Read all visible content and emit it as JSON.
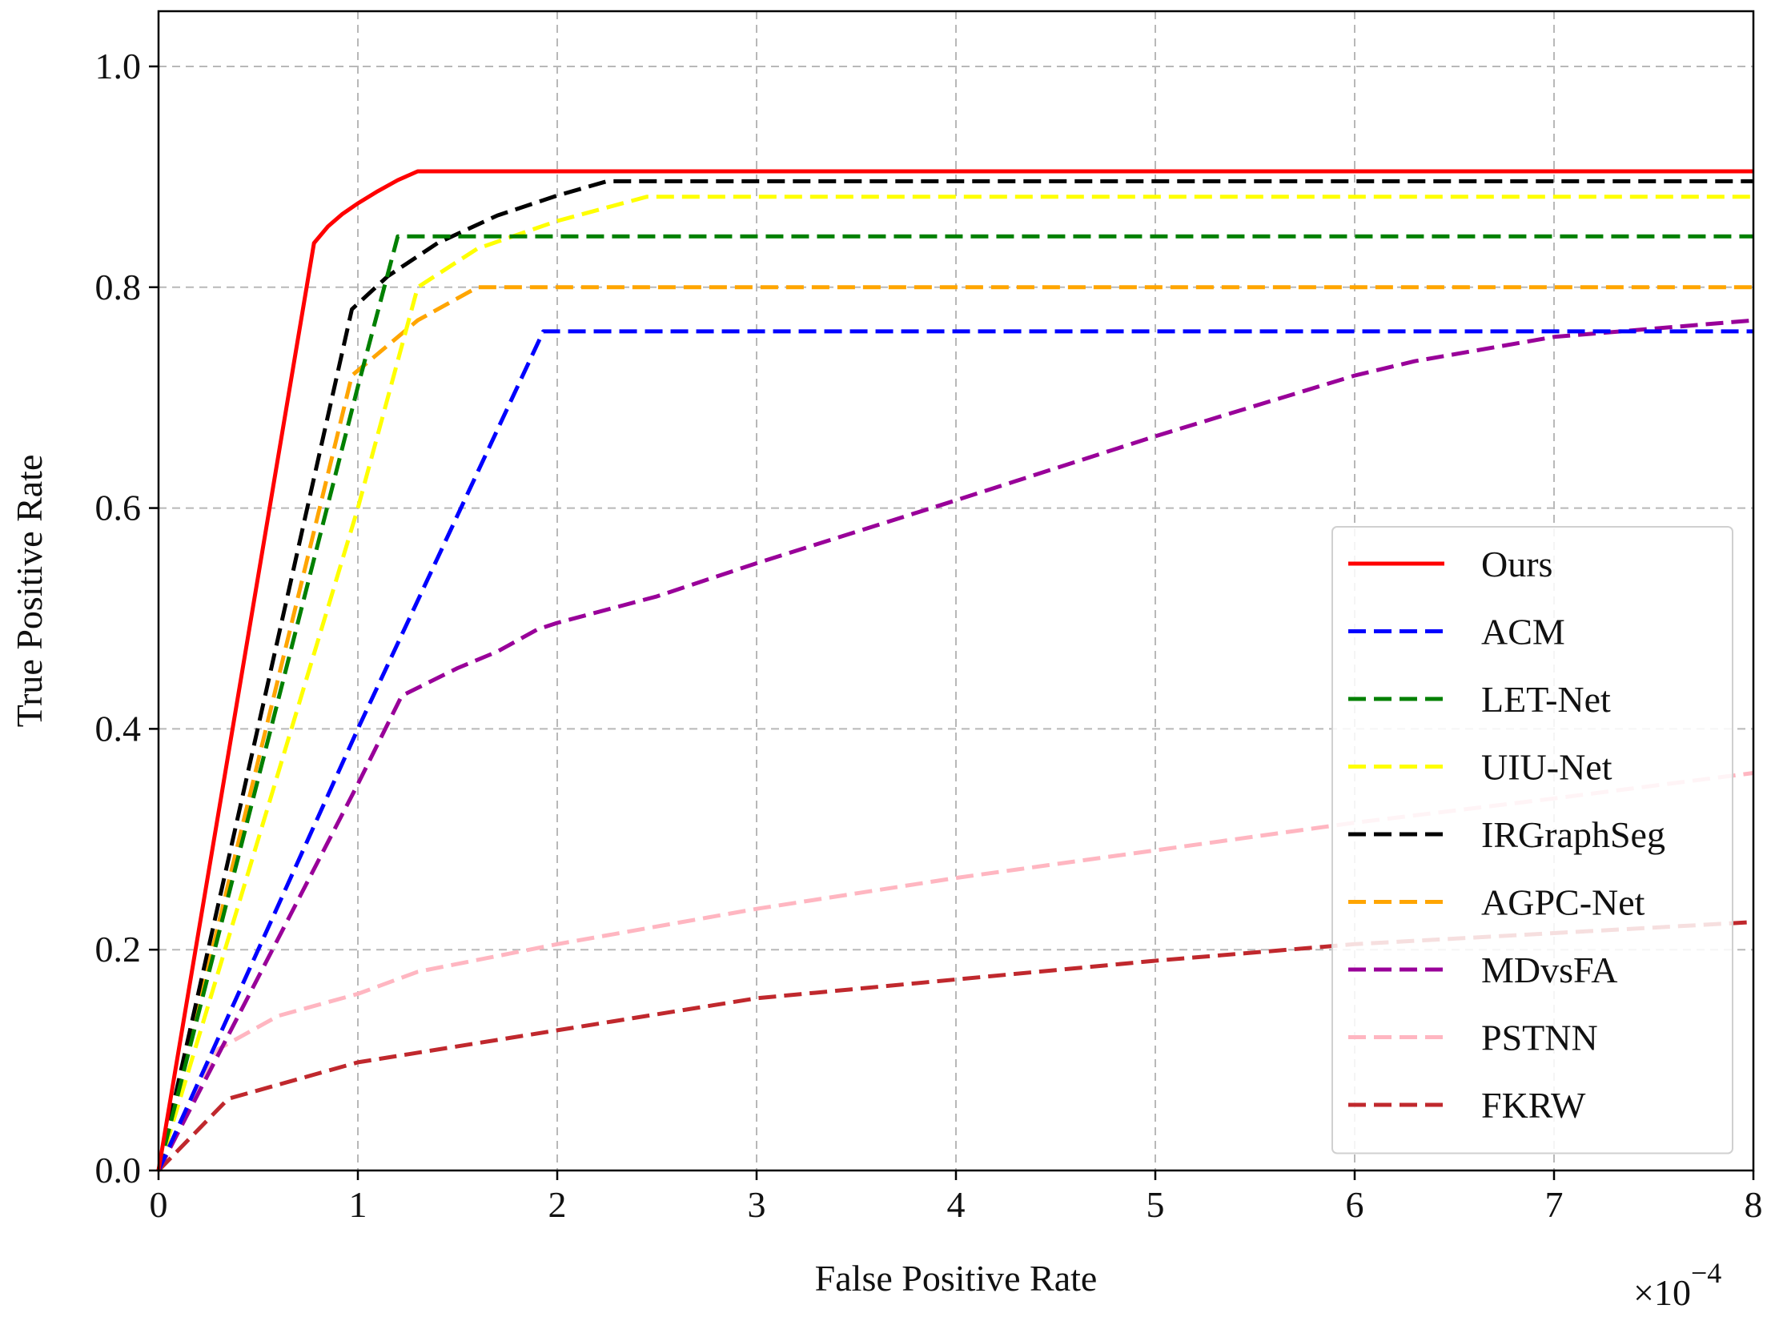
{
  "chart_data": {
    "type": "line",
    "title": "",
    "xlabel": "False Positive Rate",
    "ylabel": "True Positive Rate",
    "x_multiplier_label": "×10",
    "x_multiplier_exponent": "−4",
    "xlim": [
      0,
      8
    ],
    "ylim": [
      0,
      1.05
    ],
    "xticks": [
      0,
      1,
      2,
      3,
      4,
      5,
      6,
      7,
      8
    ],
    "xtick_labels": [
      "0",
      "1",
      "2",
      "3",
      "4",
      "5",
      "6",
      "7",
      "8"
    ],
    "yticks": [
      0.0,
      0.2,
      0.4,
      0.6,
      0.8,
      1.0
    ],
    "ytick_labels": [
      "0.0",
      "0.2",
      "0.4",
      "0.6",
      "0.8",
      "1.0"
    ],
    "grid": true,
    "legend_position": "lower-right",
    "series": [
      {
        "name": "Ours",
        "color": "#ff0000",
        "dash": "solid",
        "x": [
          0,
          0.78,
          0.85,
          0.92,
          1.0,
          1.1,
          1.2,
          1.3,
          8
        ],
        "y": [
          0,
          0.84,
          0.855,
          0.866,
          0.876,
          0.887,
          0.897,
          0.905,
          0.905
        ]
      },
      {
        "name": "ACM",
        "color": "#0000ff",
        "dash": "dashed",
        "x": [
          0,
          1.0,
          1.93,
          8
        ],
        "y": [
          0,
          0.4,
          0.76,
          0.76
        ]
      },
      {
        "name": "LET-Net",
        "color": "#008000",
        "dash": "dashed",
        "x": [
          0,
          1.0,
          1.2,
          8
        ],
        "y": [
          0,
          0.71,
          0.846,
          0.846
        ]
      },
      {
        "name": "UIU-Net",
        "color": "#ffff00",
        "dash": "dashed",
        "x": [
          0,
          1.0,
          1.3,
          1.6,
          2.0,
          2.45,
          8
        ],
        "y": [
          0,
          0.6,
          0.8,
          0.835,
          0.86,
          0.882,
          0.882
        ]
      },
      {
        "name": "IRGraphSeg",
        "color": "#000000",
        "dash": "dashed",
        "x": [
          0,
          0.97,
          1.15,
          1.4,
          1.7,
          2.0,
          2.25,
          8
        ],
        "y": [
          0,
          0.78,
          0.81,
          0.84,
          0.865,
          0.883,
          0.896,
          0.896
        ]
      },
      {
        "name": "AGPC-Net",
        "color": "#ffa500",
        "dash": "dashed",
        "x": [
          0,
          0.97,
          1.3,
          1.6,
          8
        ],
        "y": [
          0,
          0.72,
          0.77,
          0.8,
          0.8
        ]
      },
      {
        "name": "MDvsFA",
        "color": "#990099",
        "dash": "dashed",
        "x": [
          0,
          1.0,
          1.22,
          1.5,
          1.7,
          1.9,
          2.0,
          2.5,
          3.0,
          4.0,
          5.0,
          6.0,
          6.3,
          7.0,
          8.0
        ],
        "y": [
          0,
          0.35,
          0.43,
          0.455,
          0.47,
          0.49,
          0.496,
          0.52,
          0.55,
          0.607,
          0.665,
          0.72,
          0.733,
          0.755,
          0.77
        ]
      },
      {
        "name": "PSTNN",
        "color": "#ffb6c1",
        "dash": "dashed",
        "x": [
          0,
          0.3,
          0.6,
          1.0,
          1.3,
          2.0,
          3.0,
          4.0,
          5.0,
          6.0,
          7.0,
          8.0
        ],
        "y": [
          0,
          0.11,
          0.14,
          0.16,
          0.18,
          0.205,
          0.237,
          0.265,
          0.29,
          0.315,
          0.337,
          0.36
        ]
      },
      {
        "name": "FKRW",
        "color": "#c0282d",
        "dash": "dashed",
        "x": [
          0,
          0.35,
          1.0,
          2.0,
          3.0,
          4.0,
          5.0,
          6.0,
          7.0,
          8.0
        ],
        "y": [
          0,
          0.065,
          0.098,
          0.127,
          0.156,
          0.173,
          0.19,
          0.205,
          0.215,
          0.225
        ]
      }
    ]
  }
}
